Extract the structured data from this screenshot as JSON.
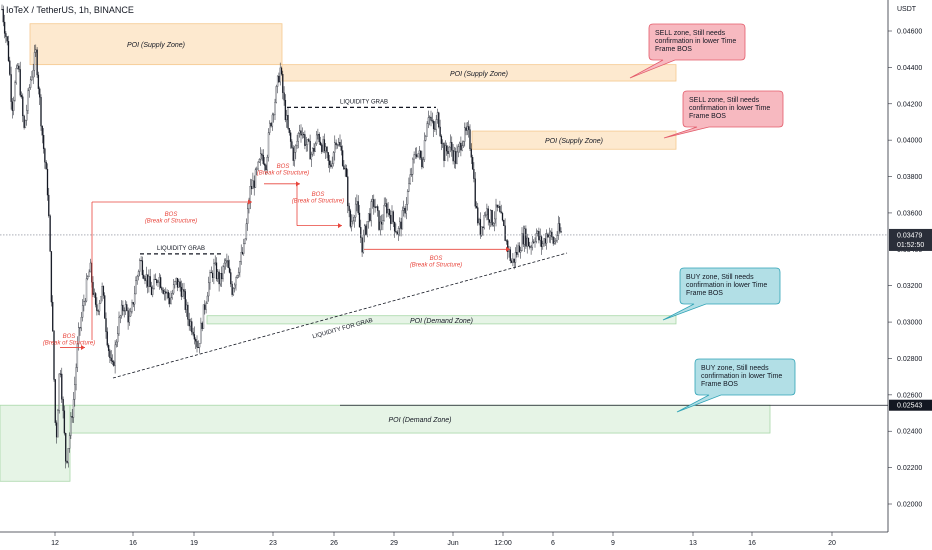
{
  "header": {
    "title": "IoTeX / TetherUS, 1h, BINANCE"
  },
  "price_axis": {
    "currency": "USDT",
    "ticks": [
      "0.04600",
      "0.04400",
      "0.04200",
      "0.04000",
      "0.03800",
      "0.03600",
      "0.03200",
      "0.03000",
      "0.02800",
      "0.02600",
      "0.02400",
      "0.02200",
      "0.02000"
    ],
    "current_price": "0.03479",
    "countdown": "01:52:50",
    "partial_label": "0.03400",
    "hline_price": "0.02543",
    "colors": {
      "current": "#2a2e39",
      "hline": "#131722"
    }
  },
  "time_axis": {
    "ticks": [
      "12",
      "16",
      "19",
      "23",
      "26",
      "29",
      "Jun",
      "12:00",
      "6",
      "9",
      "13",
      "16",
      "20"
    ]
  },
  "annotations": {
    "poi_supply": "POI (Supply Zone)",
    "poi_demand": "POI (Demand Zone)",
    "bos": "BOS",
    "break_of_structure": "(Break of Structure)",
    "liquidity_grab": "LIQUIDITY GRAB",
    "liquidity_for_grab": "LIQUIDITY FOR GRAB",
    "sell_note": "SELL zone, Still needs confirmation in lower Time Frame BOS",
    "buy_note": "BUY zone, Still needs confirmation in lower Time Frame BOS",
    "colors": {
      "supply_fill": "#fde9cf",
      "supply_border": "#f5c88e",
      "demand_fill": "#e6f4e6",
      "demand_border": "#a8d7a8",
      "sell_fill": "#f7b9c0",
      "sell_border": "#e35b6a",
      "buy_fill": "#b2dfe6",
      "buy_border": "#2fa3b6",
      "bos": "#e8453c"
    }
  },
  "chart_data": {
    "type": "candlestick",
    "symbol": "IoTeX / TetherUS",
    "timeframe": "1h",
    "exchange": "BINANCE",
    "ylim": [
      0.0195,
      0.0475
    ],
    "x_ticks": [
      "12",
      "16",
      "19",
      "23",
      "26",
      "29",
      "Jun",
      "12:00",
      "6",
      "9",
      "13",
      "16",
      "20"
    ],
    "price_path": [
      {
        "x": "11",
        "close": 0.0472
      },
      {
        "x": "11",
        "close": 0.0452
      },
      {
        "x": "11",
        "close": 0.0418
      },
      {
        "x": "12",
        "close": 0.037
      },
      {
        "x": "12",
        "close": 0.0232
      },
      {
        "x": "12",
        "close": 0.0262
      },
      {
        "x": "13",
        "close": 0.029
      },
      {
        "x": "14",
        "close": 0.0268
      },
      {
        "x": "15",
        "close": 0.0305
      },
      {
        "x": "17",
        "close": 0.033
      },
      {
        "x": "18",
        "close": 0.0312
      },
      {
        "x": "19",
        "close": 0.0285
      },
      {
        "x": "20",
        "close": 0.0322
      },
      {
        "x": "21",
        "close": 0.0338
      },
      {
        "x": "22",
        "close": 0.038
      },
      {
        "x": "23",
        "close": 0.0442
      },
      {
        "x": "24",
        "close": 0.0408
      },
      {
        "x": "25",
        "close": 0.0392
      },
      {
        "x": "26",
        "close": 0.04
      },
      {
        "x": "27",
        "close": 0.035
      },
      {
        "x": "28",
        "close": 0.036
      },
      {
        "x": "29",
        "close": 0.0352
      },
      {
        "x": "30",
        "close": 0.0395
      },
      {
        "x": "31",
        "close": 0.0414
      },
      {
        "x": "Jun",
        "close": 0.0388
      },
      {
        "x": "Jun",
        "close": 0.0412
      },
      {
        "x": "2",
        "close": 0.0362
      },
      {
        "x": "12:00",
        "close": 0.034
      },
      {
        "x": "4",
        "close": 0.035
      },
      {
        "x": "6",
        "close": 0.0347
      }
    ],
    "zones": [
      {
        "label": "POI (Supply Zone)",
        "kind": "supply",
        "price_low": 0.0441,
        "price_high": 0.0464
      },
      {
        "label": "POI (Supply Zone)",
        "kind": "supply",
        "price_low": 0.0432,
        "price_high": 0.0441
      },
      {
        "label": "POI (Supply Zone)",
        "kind": "supply",
        "price_low": 0.0395,
        "price_high": 0.0405
      },
      {
        "label": "POI (Demand Zone)",
        "kind": "demand",
        "price_low": 0.0299,
        "price_high": 0.0304
      },
      {
        "label": "POI (Demand Zone)",
        "kind": "demand",
        "price_low": 0.0237,
        "price_high": 0.0254
      }
    ],
    "levels": [
      {
        "label": "LIQUIDITY GRAB",
        "price": 0.0418
      },
      {
        "label": "LIQUIDITY GRAB",
        "price": 0.0337
      },
      {
        "label": "BOS",
        "price": 0.0376
      },
      {
        "label": "BOS",
        "price": 0.0353
      },
      {
        "label": "BOS",
        "price": 0.034
      },
      {
        "label": "BOS",
        "price": 0.0286
      },
      {
        "label": "BOS",
        "price": 0.0366
      }
    ],
    "current_price": 0.03479,
    "horizontal_line": 0.02543
  }
}
